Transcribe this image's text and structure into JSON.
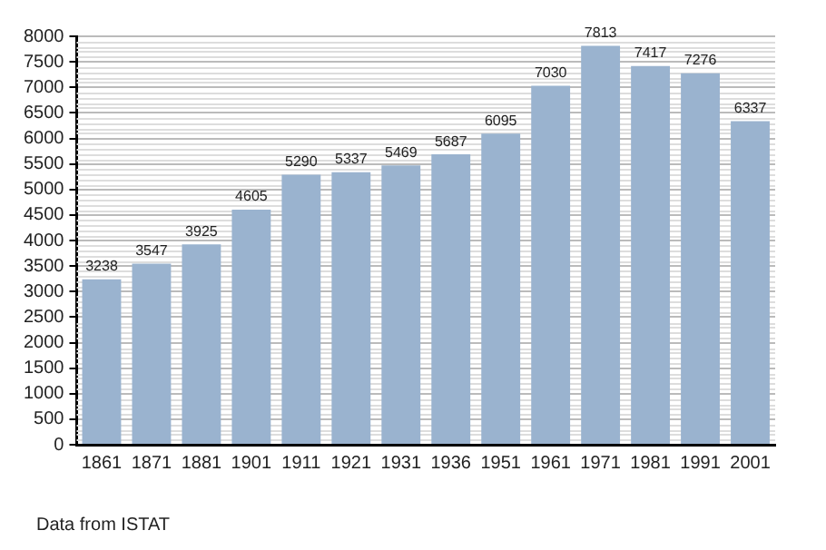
{
  "chart_data": {
    "type": "bar",
    "categories": [
      "1861",
      "1871",
      "1881",
      "1901",
      "1911",
      "1921",
      "1931",
      "1936",
      "1951",
      "1961",
      "1971",
      "1981",
      "1991",
      "2001"
    ],
    "values": [
      3238,
      3547,
      3925,
      4605,
      5290,
      5337,
      5469,
      5687,
      6095,
      7030,
      7813,
      7417,
      7276,
      6337
    ],
    "color": "#9ab3cf",
    "ylim": [
      0,
      8000
    ],
    "yticks": [
      0,
      500,
      1000,
      1500,
      2000,
      2500,
      3000,
      3500,
      4000,
      4500,
      5000,
      5500,
      6000,
      6500,
      7000,
      7500,
      8000
    ],
    "grid": "y",
    "data_labels": true,
    "legend": false,
    "annotations": [
      "Data from ISTAT"
    ]
  }
}
